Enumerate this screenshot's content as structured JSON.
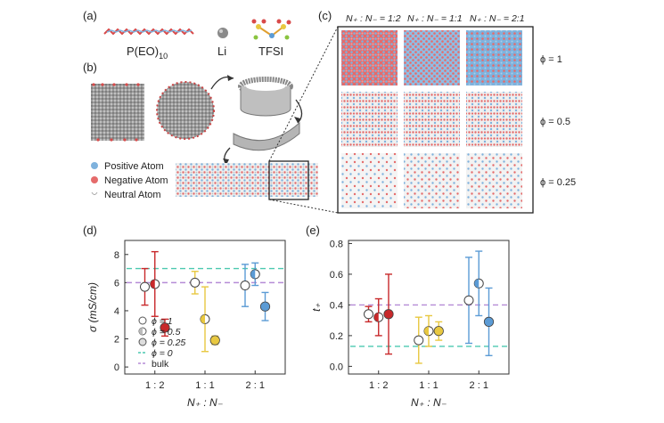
{
  "panels": {
    "a": {
      "label": "(a)",
      "molecules": [
        "P(EO)",
        "Li",
        "TFSI"
      ],
      "peo_subscript": "10"
    },
    "b": {
      "label": "(b)",
      "legend": [
        "Positive Atom",
        "Negative Atom",
        "Neutral Atom"
      ]
    },
    "c": {
      "label": "(c)",
      "col_headers": [
        "N₊ : N₋ = 1:2",
        "N₊ : N₋ = 1:1",
        "N₊ : N₋ = 2:1"
      ],
      "row_labels": [
        "ϕ = 1",
        "ϕ = 0.5",
        "ϕ = 0.25"
      ]
    },
    "d": {
      "label": "(d)"
    },
    "e": {
      "label": "(e)"
    }
  },
  "colors": {
    "positive": "#7fb2dd",
    "negative": "#e56b6b",
    "neutral": "#d0d0d0",
    "red": "#c8282a",
    "yellow": "#e8c840",
    "blue": "#5b9bd5",
    "cyan_dash": "#4cc9b0",
    "purple_dash": "#b58bd6"
  },
  "chart_data": [
    {
      "type": "scatter",
      "panel": "d",
      "ylabel": "σ (mS/cm)",
      "xlabel": "N₊ : N₋",
      "categories": [
        "1 : 2",
        "1 : 1",
        "2 : 1"
      ],
      "ylim": [
        -0.5,
        9
      ],
      "yticks": [
        0,
        2,
        4,
        6,
        8
      ],
      "legend": [
        "ϕ = 1",
        "ϕ = 0.5",
        "ϕ = 0.25",
        "ϕ = 0",
        "bulk"
      ],
      "series": [
        {
          "name": "ϕ = 1",
          "x": [
            0.8,
            1.8,
            2.8
          ],
          "y": [
            5.7,
            6.0,
            5.8
          ],
          "err": [
            1.3,
            0.8,
            1.5
          ],
          "style": "open"
        },
        {
          "name": "ϕ = 0.5",
          "x": [
            1.0,
            2.0,
            3.0
          ],
          "y": [
            5.9,
            3.4,
            6.6
          ],
          "err": [
            2.3,
            2.3,
            0.8
          ],
          "style": "half"
        },
        {
          "name": "ϕ = 0.25",
          "x": [
            1.2,
            2.2,
            3.2
          ],
          "y": [
            2.8,
            1.9,
            4.3
          ],
          "err": [
            0.6,
            0.3,
            1.0
          ],
          "style": "filled"
        }
      ],
      "hlines": [
        {
          "name": "ϕ = 0",
          "y": 7.0
        },
        {
          "name": "bulk",
          "y": 6.0
        }
      ]
    },
    {
      "type": "scatter",
      "panel": "e",
      "ylabel": "t₊",
      "xlabel": "N₊ : N₋",
      "categories": [
        "1 : 2",
        "1 : 1",
        "2 : 1"
      ],
      "ylim": [
        -0.05,
        0.82
      ],
      "yticks": [
        "0.0",
        "0.2",
        "0.4",
        "0.6",
        "0.8"
      ],
      "series": [
        {
          "name": "ϕ = 1",
          "x": [
            0.8,
            1.8,
            2.8
          ],
          "y": [
            0.34,
            0.17,
            0.43
          ],
          "err": [
            0.05,
            0.15,
            0.28
          ],
          "style": "open"
        },
        {
          "name": "ϕ = 0.5",
          "x": [
            1.0,
            2.0,
            3.0
          ],
          "y": [
            0.32,
            0.23,
            0.54
          ],
          "err": [
            0.12,
            0.1,
            0.21
          ],
          "style": "half"
        },
        {
          "name": "ϕ = 0.25",
          "x": [
            1.2,
            2.2,
            3.2
          ],
          "y": [
            0.34,
            0.23,
            0.29
          ],
          "err": [
            0.26,
            0.06,
            0.22
          ],
          "style": "filled"
        }
      ],
      "hlines": [
        {
          "name": "ϕ = 0",
          "y": 0.13
        },
        {
          "name": "bulk",
          "y": 0.4
        }
      ]
    }
  ]
}
